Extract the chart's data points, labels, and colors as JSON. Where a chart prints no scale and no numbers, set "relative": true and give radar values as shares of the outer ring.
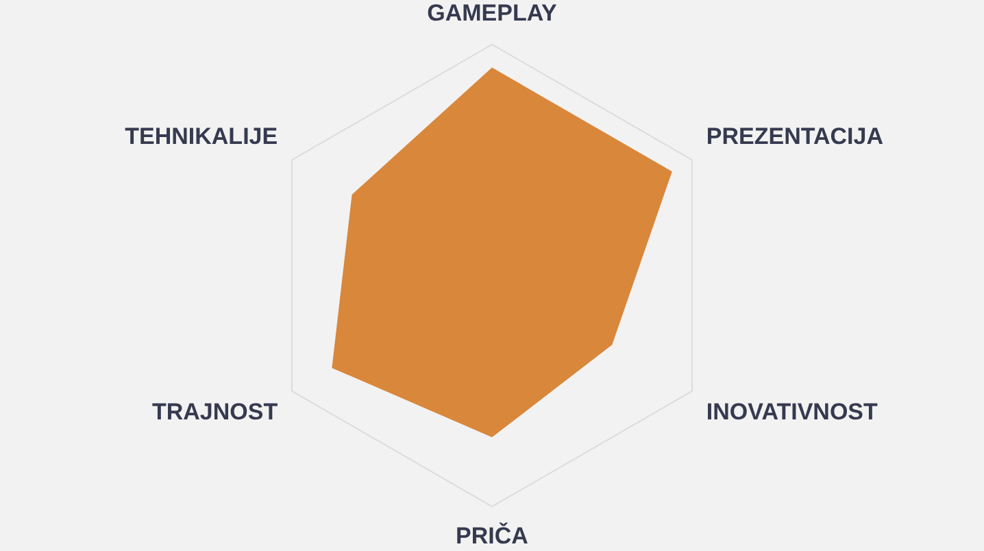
{
  "chart_data": {
    "type": "radar",
    "relative": true,
    "categories": [
      "GAMEPLAY",
      "PREZENTACIJA",
      "INOVATIVNOST",
      "PRIČA",
      "TRAJNOST",
      "TEHNIKALIJE"
    ],
    "values": [
      0.9,
      0.9,
      0.6,
      0.7,
      0.8,
      0.7
    ],
    "color": "#d9873b",
    "grid": true,
    "marker": "none"
  }
}
